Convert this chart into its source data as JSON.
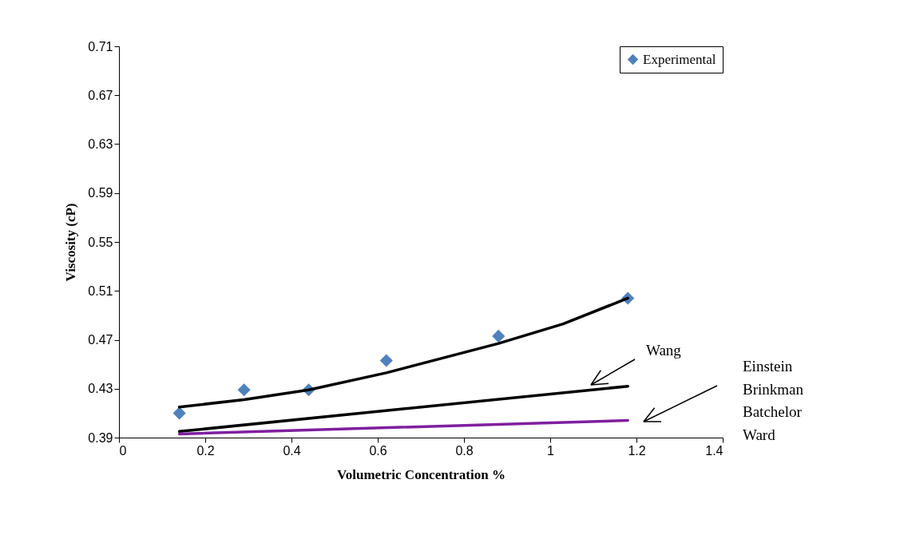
{
  "chart_data": {
    "type": "scatter",
    "xlabel": "Volumetric Concentration %",
    "ylabel": "Viscosity (cP)",
    "xlim": [
      0,
      1.4
    ],
    "xticks": [
      0,
      0.2,
      0.4,
      0.6,
      0.8,
      1,
      1.2,
      1.4
    ],
    "ylim": [
      0.39,
      0.71
    ],
    "yticks": [
      0.39,
      0.43,
      0.47,
      0.51,
      0.55,
      0.59,
      0.63,
      0.67,
      0.71
    ],
    "x": [
      0.14,
      0.29,
      0.44,
      0.62,
      0.88,
      1.18
    ],
    "series": [
      {
        "name": "Experimental",
        "marker": "diamond",
        "color": "#4f81bd",
        "values": [
          0.41,
          0.429,
          0.429,
          0.453,
          0.473,
          0.504
        ]
      },
      {
        "type": "line",
        "color": "#000000",
        "x": [
          0.14,
          0.29,
          0.44,
          0.62,
          0.88,
          1.03,
          1.18
        ],
        "values": [
          0.415,
          0.421,
          0.429,
          0.443,
          0.467,
          0.483,
          0.504
        ]
      },
      {
        "type": "line",
        "color": "#000000",
        "x": [
          0.14,
          1.18
        ],
        "values": [
          0.395,
          0.432
        ]
      },
      {
        "type": "line",
        "color": "#7f1f9f",
        "x": [
          0.14,
          1.18
        ],
        "values": [
          0.393,
          0.404
        ]
      }
    ],
    "annotations": [
      "Wang",
      "Einstein\nBrinkman\nBatchelor\nWard"
    ],
    "legend": "top right",
    "grid": false
  }
}
